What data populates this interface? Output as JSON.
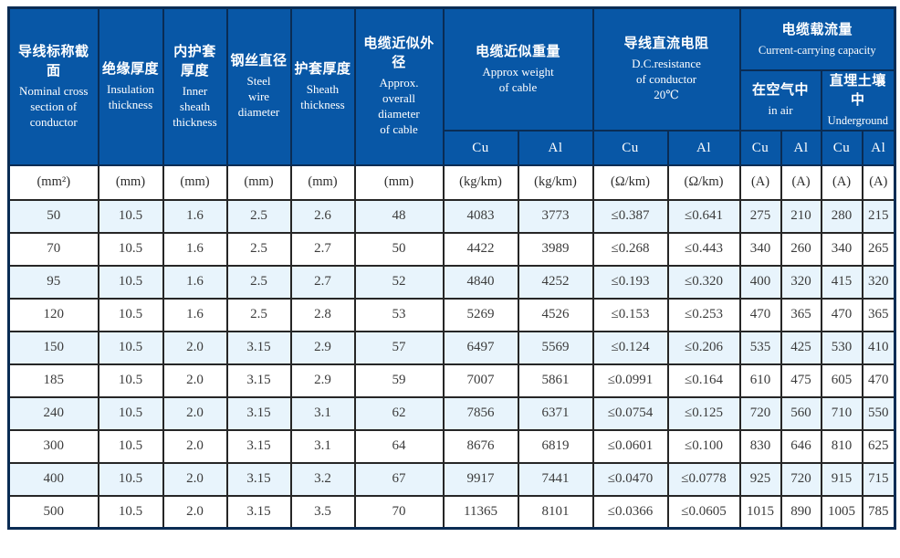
{
  "colors": {
    "header_bg": "#0857a6",
    "header_border": "#0a2c54",
    "header_text": "#ffffff",
    "body_border": "#262626",
    "row_alt_bg": "#e8f4fc",
    "row_bg": "#ffffff",
    "body_text": "#3b3b3b"
  },
  "header": {
    "nominal_section": {
      "zh": "导线标称截面",
      "en": "Nominal cross\nsection of\nconductor"
    },
    "insulation": {
      "zh": "绝缘厚度",
      "en": "Insulation\nthickness"
    },
    "inner_sheath": {
      "zh": "内护套\n厚度",
      "en": "Inner\nsheath\nthickness"
    },
    "steel_wire": {
      "zh": "钢丝直径",
      "en": "Steel\nwire\ndiameter"
    },
    "sheath": {
      "zh": "护套厚度",
      "en": "Sheath\nthickness"
    },
    "diameter": {
      "zh": "电缆近似外径",
      "en": "Approx.\noverall\ndiameter\nof cable"
    },
    "weight": {
      "zh": "电缆近似重量",
      "en": "Approx weight\nof cable"
    },
    "resistance": {
      "zh": "导线直流电阻",
      "en": "D.C.resistance\nof conductor\n20℃"
    },
    "capacity": {
      "zh": "电缆载流量",
      "en": "Current-carrying capacity"
    },
    "in_air": {
      "zh": "在空气中",
      "en": "in air"
    },
    "underground": {
      "zh": "直埋土壤中",
      "en": "Underground"
    },
    "cu_label": "Cu",
    "al_label": "Al"
  },
  "units": [
    "(mm²)",
    "(mm)",
    "(mm)",
    "(mm)",
    "(mm)",
    "(mm)",
    "(kg/km)",
    "(kg/km)",
    "(Ω/km)",
    "(Ω/km)",
    "(A)",
    "(A)",
    "(A)",
    "(A)"
  ],
  "rows": [
    [
      "50",
      "10.5",
      "1.6",
      "2.5",
      "2.6",
      "48",
      "4083",
      "3773",
      "≤0.387",
      "≤0.641",
      "275",
      "210",
      "280",
      "215"
    ],
    [
      "70",
      "10.5",
      "1.6",
      "2.5",
      "2.7",
      "50",
      "4422",
      "3989",
      "≤0.268",
      "≤0.443",
      "340",
      "260",
      "340",
      "265"
    ],
    [
      "95",
      "10.5",
      "1.6",
      "2.5",
      "2.7",
      "52",
      "4840",
      "4252",
      "≤0.193",
      "≤0.320",
      "400",
      "320",
      "415",
      "320"
    ],
    [
      "120",
      "10.5",
      "1.6",
      "2.5",
      "2.8",
      "53",
      "5269",
      "4526",
      "≤0.153",
      "≤0.253",
      "470",
      "365",
      "470",
      "365"
    ],
    [
      "150",
      "10.5",
      "2.0",
      "3.15",
      "2.9",
      "57",
      "6497",
      "5569",
      "≤0.124",
      "≤0.206",
      "535",
      "425",
      "530",
      "410"
    ],
    [
      "185",
      "10.5",
      "2.0",
      "3.15",
      "2.9",
      "59",
      "7007",
      "5861",
      "≤0.0991",
      "≤0.164",
      "610",
      "475",
      "605",
      "470"
    ],
    [
      "240",
      "10.5",
      "2.0",
      "3.15",
      "3.1",
      "62",
      "7856",
      "6371",
      "≤0.0754",
      "≤0.125",
      "720",
      "560",
      "710",
      "550"
    ],
    [
      "300",
      "10.5",
      "2.0",
      "3.15",
      "3.1",
      "64",
      "8676",
      "6819",
      "≤0.0601",
      "≤0.100",
      "830",
      "646",
      "810",
      "625"
    ],
    [
      "400",
      "10.5",
      "2.0",
      "3.15",
      "3.2",
      "67",
      "9917",
      "7441",
      "≤0.0470",
      "≤0.0778",
      "925",
      "720",
      "915",
      "715"
    ],
    [
      "500",
      "10.5",
      "2.0",
      "3.15",
      "3.5",
      "70",
      "11365",
      "8101",
      "≤0.0366",
      "≤0.0605",
      "1015",
      "890",
      "1005",
      "785"
    ]
  ]
}
